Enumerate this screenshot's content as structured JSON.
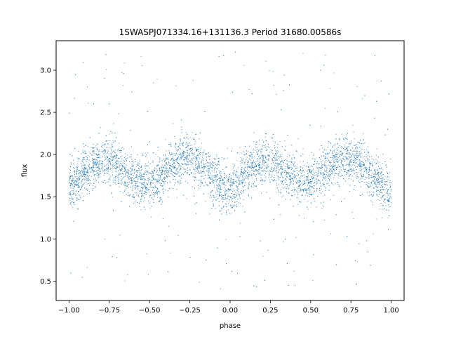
{
  "chart_data": {
    "type": "scatter",
    "title": "1SWASPJ071334.16+131136.3 Period 31680.00586s",
    "xlabel": "phase",
    "ylabel": "flux",
    "xlim": [
      -1.08,
      1.08
    ],
    "ylim": [
      0.27,
      3.35
    ],
    "xticks": [
      -1.0,
      -0.75,
      -0.5,
      -0.25,
      0.0,
      0.25,
      0.5,
      0.75,
      1.0
    ],
    "xtick_labels": [
      "−1.00",
      "−0.75",
      "−0.50",
      "−0.25",
      "0.00",
      "0.25",
      "0.50",
      "0.75",
      "1.00"
    ],
    "yticks": [
      0.5,
      1.0,
      1.5,
      2.0,
      2.5,
      3.0
    ],
    "ytick_labels": [
      "0.5",
      "1.0",
      "1.5",
      "2.0",
      "2.5",
      "3.0"
    ],
    "grid": false,
    "marker_color": "#1f77b4",
    "series": [
      {
        "x": [
          -1.0,
          -0.95,
          -0.9,
          -0.85,
          -0.8,
          -0.75,
          -0.7,
          -0.65,
          -0.6,
          -0.55,
          -0.5,
          -0.45,
          -0.4,
          -0.35,
          -0.3,
          -0.25,
          -0.2,
          -0.15,
          -0.1,
          -0.05,
          0.0,
          0.05,
          0.1,
          0.15,
          0.2,
          0.25,
          0.3,
          0.35,
          0.4,
          0.45,
          0.5,
          0.55,
          0.6,
          0.65,
          0.7,
          0.75,
          0.8,
          0.85,
          0.9,
          0.95,
          1.0
        ],
        "y": [
          1.6,
          1.7,
          1.8,
          1.88,
          1.93,
          1.93,
          1.88,
          1.8,
          1.72,
          1.67,
          1.65,
          1.7,
          1.8,
          1.9,
          1.95,
          1.95,
          1.9,
          1.82,
          1.72,
          1.62,
          1.55,
          1.65,
          1.78,
          1.88,
          1.92,
          1.92,
          1.88,
          1.82,
          1.74,
          1.68,
          1.66,
          1.72,
          1.82,
          1.9,
          1.95,
          1.95,
          1.9,
          1.82,
          1.72,
          1.62,
          1.55
        ]
      }
    ]
  }
}
